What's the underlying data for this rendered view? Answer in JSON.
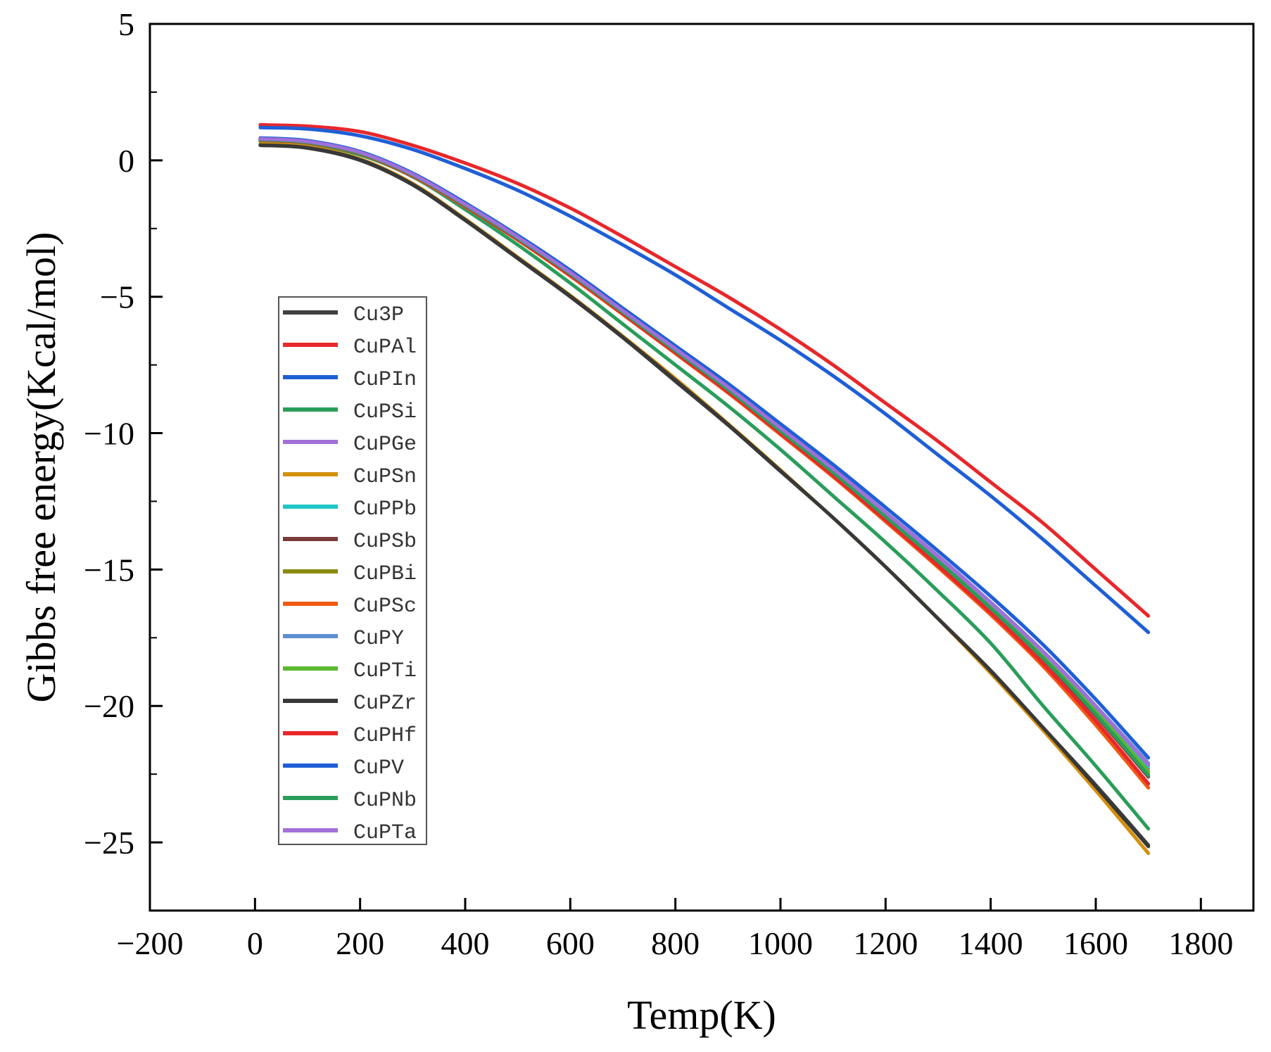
{
  "chart_data": {
    "type": "line",
    "title": "",
    "xlabel": "Temp(K)",
    "ylabel": "Gibbs free energy(Kcal/mol)",
    "xlim": [
      -200,
      1900
    ],
    "ylim": [
      -27.5,
      5
    ],
    "xticks": [
      -200,
      0,
      200,
      400,
      600,
      800,
      1000,
      1200,
      1400,
      1600,
      1800
    ],
    "xtick_labels": [
      "−200",
      "0",
      "200",
      "400",
      "600",
      "800",
      "1000",
      "1200",
      "1400",
      "1600",
      "1800"
    ],
    "yticks": [
      5,
      0,
      -5,
      -10,
      -15,
      -20,
      -25
    ],
    "ytick_labels": [
      "5",
      "0",
      "−5",
      "−10",
      "−15",
      "−20",
      "−25"
    ],
    "grid": false,
    "legend_position": "left-middle",
    "x": [
      10,
      100,
      200,
      300,
      400,
      500,
      600,
      700,
      800,
      900,
      1000,
      1100,
      1200,
      1300,
      1400,
      1500,
      1600,
      1700
    ],
    "series": [
      {
        "name": "Cu3P",
        "color": "#404040",
        "values": [
          0.55,
          0.45,
          0.0,
          -0.9,
          -2.2,
          -3.6,
          -5.0,
          -6.5,
          -8.1,
          -9.7,
          -11.4,
          -13.1,
          -14.9,
          -16.8,
          -18.7,
          -20.8,
          -22.9,
          -25.1
        ]
      },
      {
        "name": "CuPAl",
        "color": "#e8272a",
        "values": [
          1.3,
          1.25,
          1.05,
          0.55,
          -0.1,
          -0.85,
          -1.75,
          -2.8,
          -3.9,
          -5.0,
          -6.2,
          -7.5,
          -8.9,
          -10.3,
          -11.8,
          -13.3,
          -15.0,
          -16.7
        ]
      },
      {
        "name": "CuPIn",
        "color": "#1f5fd6",
        "values": [
          1.2,
          1.15,
          0.9,
          0.4,
          -0.3,
          -1.1,
          -2.05,
          -3.1,
          -4.2,
          -5.4,
          -6.6,
          -7.9,
          -9.3,
          -10.8,
          -12.3,
          -13.9,
          -15.6,
          -17.3
        ]
      },
      {
        "name": "CuPSi",
        "color": "#2a9d5a",
        "values": [
          0.7,
          0.6,
          0.2,
          -0.6,
          -1.8,
          -3.1,
          -4.5,
          -6.0,
          -7.5,
          -9.0,
          -10.6,
          -12.3,
          -14.0,
          -15.8,
          -17.7,
          -20.0,
          -22.2,
          -24.5
        ]
      },
      {
        "name": "CuPGe",
        "color": "#a070d8",
        "values": [
          0.8,
          0.7,
          0.3,
          -0.5,
          -1.6,
          -2.8,
          -4.1,
          -5.5,
          -6.9,
          -8.3,
          -9.8,
          -11.3,
          -12.9,
          -14.5,
          -16.2,
          -18.0,
          -20.0,
          -22.3
        ]
      },
      {
        "name": "CuPSn",
        "color": "#d4900a",
        "values": [
          0.6,
          0.5,
          0.05,
          -0.85,
          -2.15,
          -3.55,
          -4.95,
          -6.45,
          -8.0,
          -9.65,
          -11.35,
          -13.1,
          -14.9,
          -16.8,
          -18.8,
          -20.9,
          -23.1,
          -25.4
        ]
      },
      {
        "name": "CuPPb",
        "color": "#1fc6c6",
        "values": [
          0.78,
          0.68,
          0.28,
          -0.52,
          -1.62,
          -2.82,
          -4.12,
          -5.52,
          -6.92,
          -8.32,
          -9.82,
          -11.32,
          -12.92,
          -14.55,
          -16.25,
          -18.05,
          -20.05,
          -22.2
        ]
      },
      {
        "name": "CuPSb",
        "color": "#7a3b3b",
        "values": [
          0.76,
          0.66,
          0.26,
          -0.55,
          -1.66,
          -2.87,
          -4.18,
          -5.58,
          -7.0,
          -8.42,
          -9.94,
          -11.46,
          -13.08,
          -14.73,
          -16.45,
          -18.3,
          -20.35,
          -22.6
        ]
      },
      {
        "name": "CuPBi",
        "color": "#8a8a10",
        "values": [
          0.77,
          0.67,
          0.27,
          -0.53,
          -1.64,
          -2.85,
          -4.15,
          -5.55,
          -6.96,
          -8.38,
          -9.9,
          -11.42,
          -13.04,
          -14.68,
          -16.4,
          -18.22,
          -20.25,
          -22.5
        ]
      },
      {
        "name": "CuPSc",
        "color": "#f05a14",
        "values": [
          0.74,
          0.64,
          0.24,
          -0.58,
          -1.7,
          -2.92,
          -4.24,
          -5.65,
          -7.08,
          -8.52,
          -10.05,
          -11.6,
          -13.24,
          -14.92,
          -16.66,
          -18.55,
          -20.7,
          -23.0
        ]
      },
      {
        "name": "CuPY",
        "color": "#5b8fd0",
        "values": [
          0.8,
          0.7,
          0.3,
          -0.5,
          -1.6,
          -2.8,
          -4.1,
          -5.5,
          -6.9,
          -8.3,
          -9.8,
          -11.3,
          -12.9,
          -14.52,
          -16.22,
          -18.02,
          -20.0,
          -22.1
        ]
      },
      {
        "name": "CuPTi",
        "color": "#5cb82e",
        "values": [
          0.78,
          0.68,
          0.28,
          -0.52,
          -1.63,
          -2.84,
          -4.14,
          -5.54,
          -6.95,
          -8.37,
          -9.88,
          -11.4,
          -13.02,
          -14.66,
          -16.37,
          -18.2,
          -20.2,
          -22.4
        ]
      },
      {
        "name": "CuPZr",
        "color": "#383838",
        "values": [
          0.56,
          0.46,
          0.02,
          -0.88,
          -2.18,
          -3.58,
          -4.98,
          -6.48,
          -8.06,
          -9.68,
          -11.38,
          -13.1,
          -14.9,
          -16.8,
          -18.72,
          -20.8,
          -22.95,
          -25.15
        ]
      },
      {
        "name": "CuPHf",
        "color": "#e8272a",
        "values": [
          0.75,
          0.65,
          0.25,
          -0.56,
          -1.68,
          -2.9,
          -4.21,
          -5.62,
          -7.05,
          -8.48,
          -10.0,
          -11.55,
          -13.18,
          -14.85,
          -16.58,
          -18.45,
          -20.55,
          -22.85
        ]
      },
      {
        "name": "CuPV",
        "color": "#1f5fd6",
        "values": [
          0.82,
          0.72,
          0.32,
          -0.47,
          -1.56,
          -2.75,
          -4.03,
          -5.42,
          -6.8,
          -8.18,
          -9.66,
          -11.15,
          -12.72,
          -14.32,
          -15.98,
          -17.76,
          -19.76,
          -21.9
        ]
      },
      {
        "name": "CuPNb",
        "color": "#2a9d5a",
        "values": [
          0.76,
          0.66,
          0.26,
          -0.54,
          -1.65,
          -2.86,
          -4.16,
          -5.57,
          -6.98,
          -8.4,
          -9.92,
          -11.44,
          -13.06,
          -14.7,
          -16.42,
          -18.26,
          -20.3,
          -22.55
        ]
      },
      {
        "name": "CuPTa",
        "color": "#a070d8",
        "values": [
          0.79,
          0.69,
          0.29,
          -0.51,
          -1.61,
          -2.81,
          -4.11,
          -5.51,
          -6.91,
          -8.31,
          -9.81,
          -11.31,
          -12.91,
          -14.53,
          -16.23,
          -18.03,
          -20.02,
          -22.15
        ]
      }
    ]
  }
}
